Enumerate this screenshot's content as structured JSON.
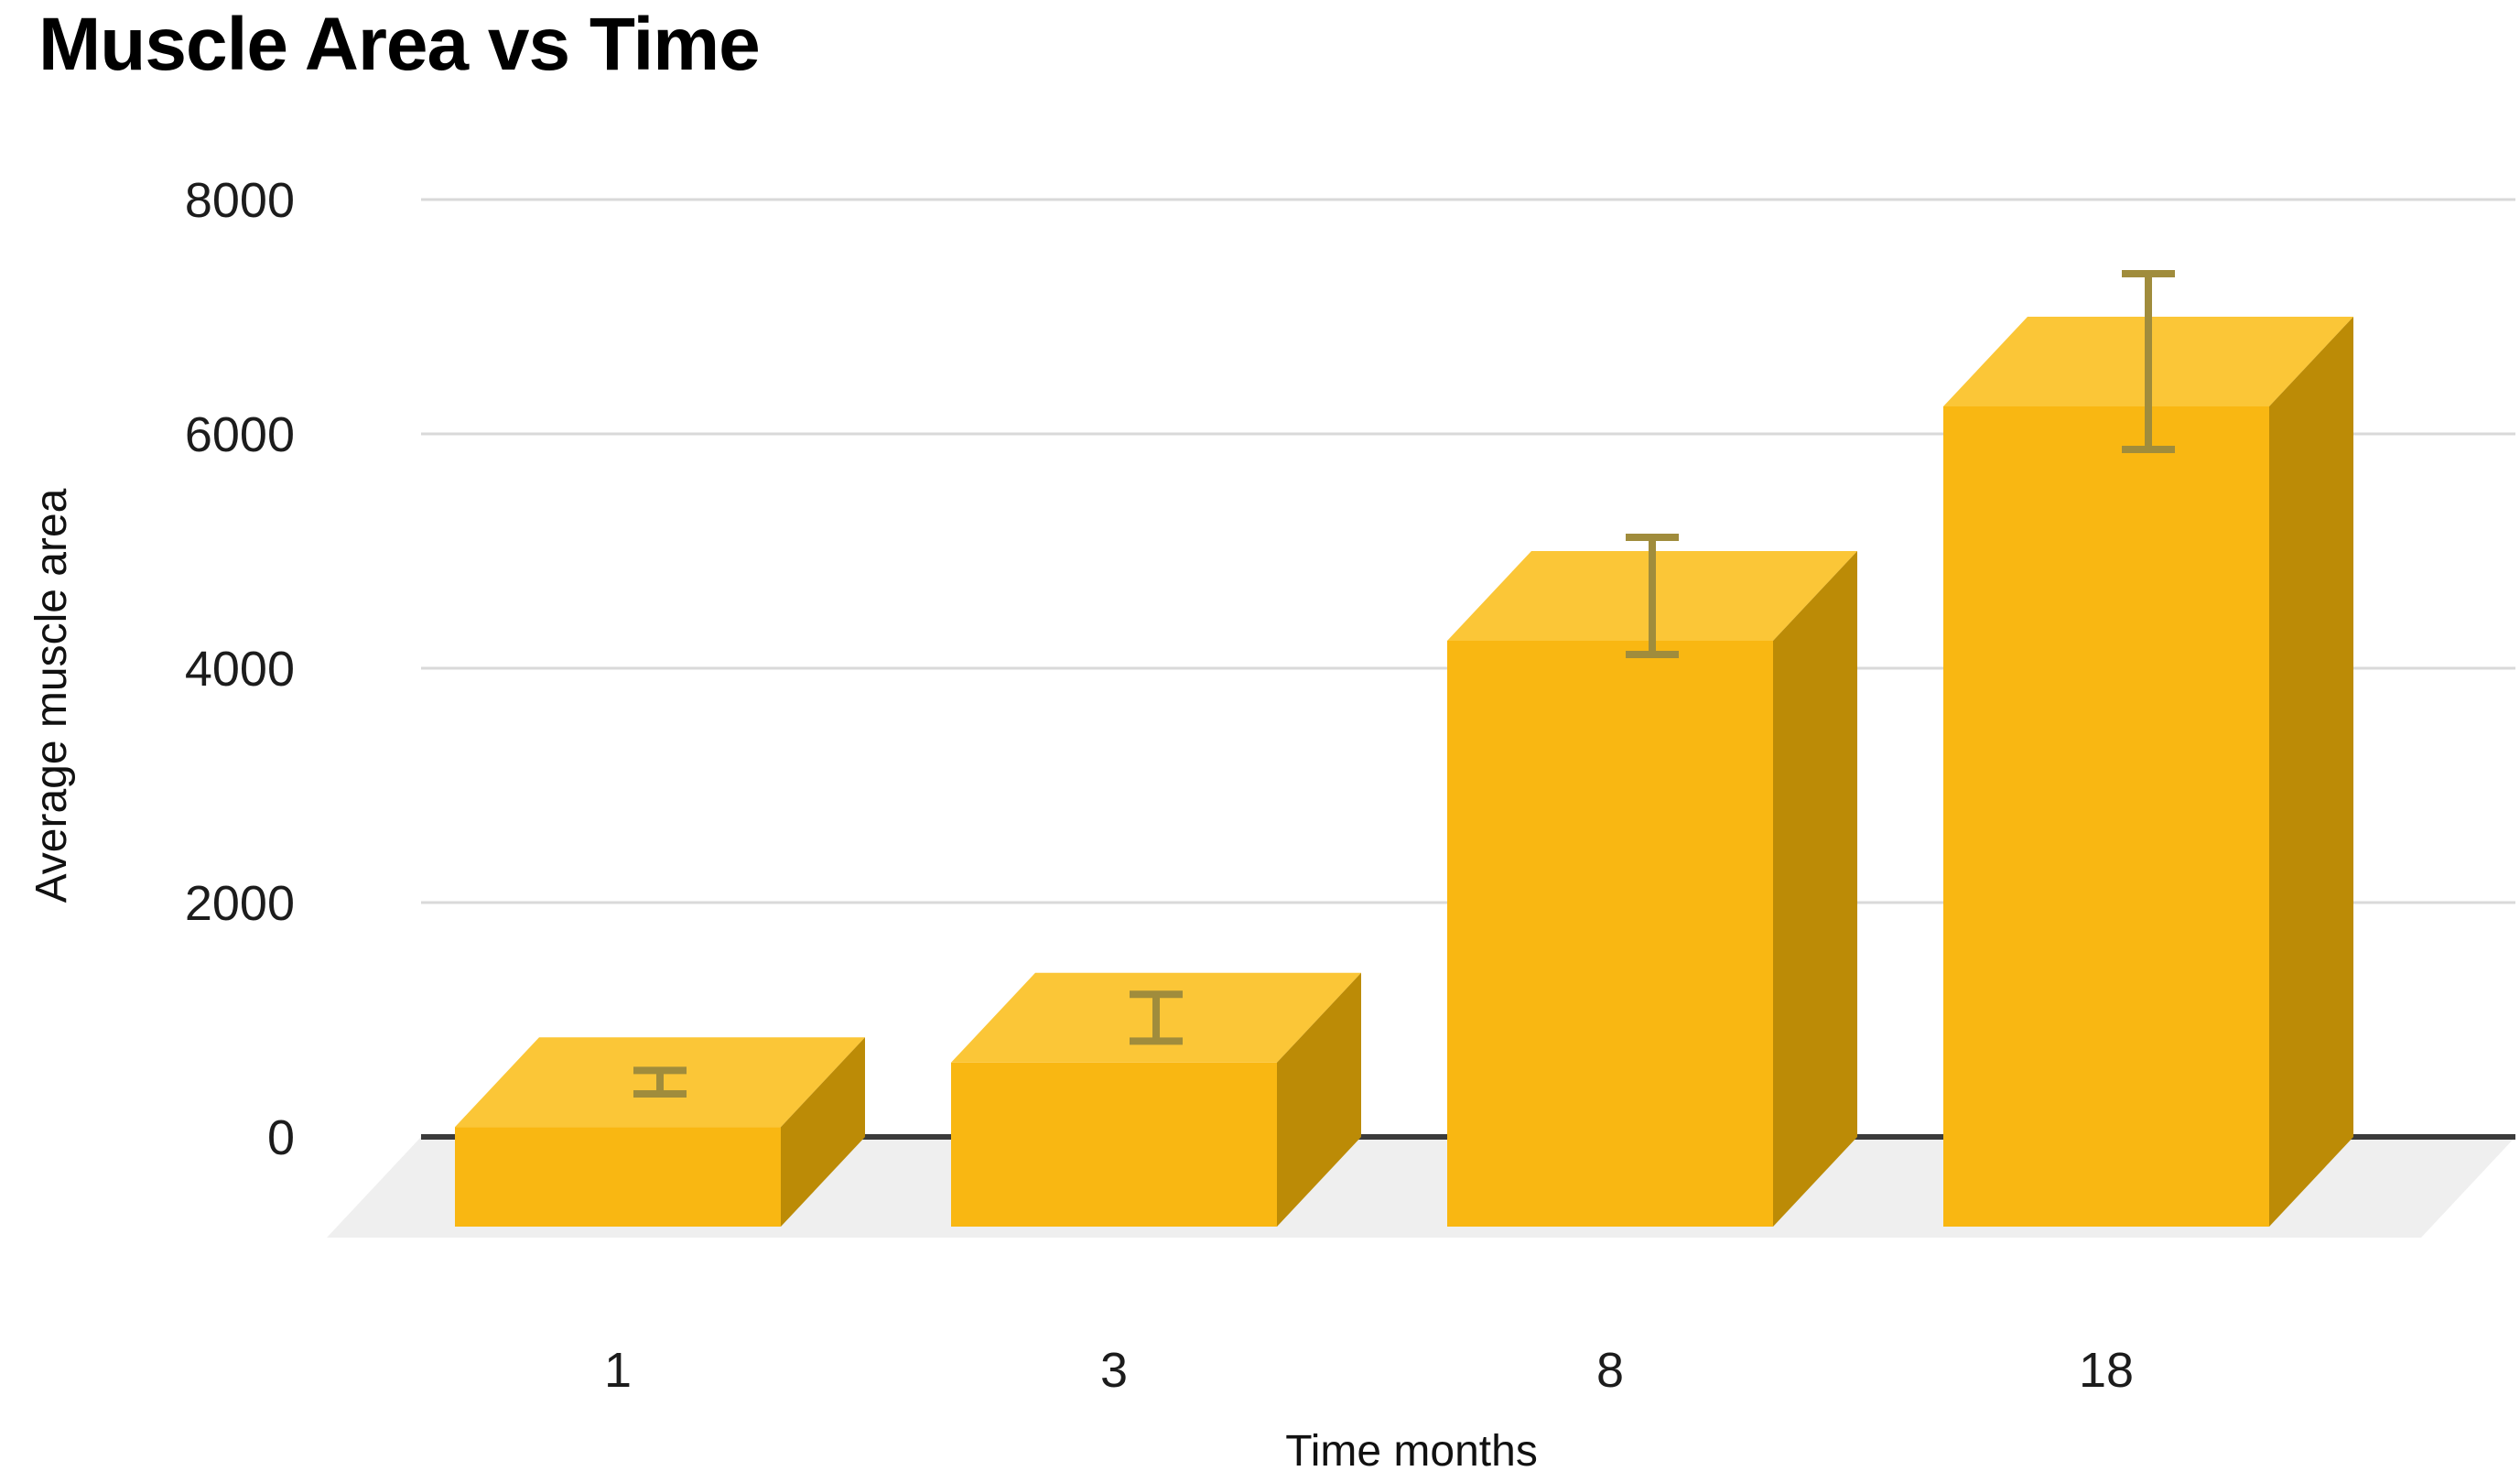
{
  "chart_data": {
    "type": "bar",
    "variant": "3d-column-with-error-bars",
    "title": "Muscle Area vs Time",
    "xlabel": "Time months",
    "ylabel": "Average muscle area",
    "categories": [
      "1",
      "3",
      "8",
      "18"
    ],
    "series": [
      {
        "name": "Average muscle area",
        "values": [
          850,
          1400,
          5000,
          7000
        ],
        "error_bars_plus_minus": [
          100,
          200,
          500,
          750
        ]
      }
    ],
    "ylim": [
      0,
      8000
    ],
    "yticks": [
      0,
      2000,
      4000,
      6000,
      8000
    ],
    "grid": true,
    "legend_position": "none",
    "colors": {
      "bar_front": "#F9B712",
      "bar_top": "#FBC637",
      "bar_side": "#BC8B06",
      "error_bar": "#A08C3C",
      "floor": "#EFEFEF",
      "gridline": "#D9D9D9",
      "axis_line": "#3B3B3B",
      "tick_text": "#1C1C1C",
      "title_text": "#000000"
    }
  }
}
